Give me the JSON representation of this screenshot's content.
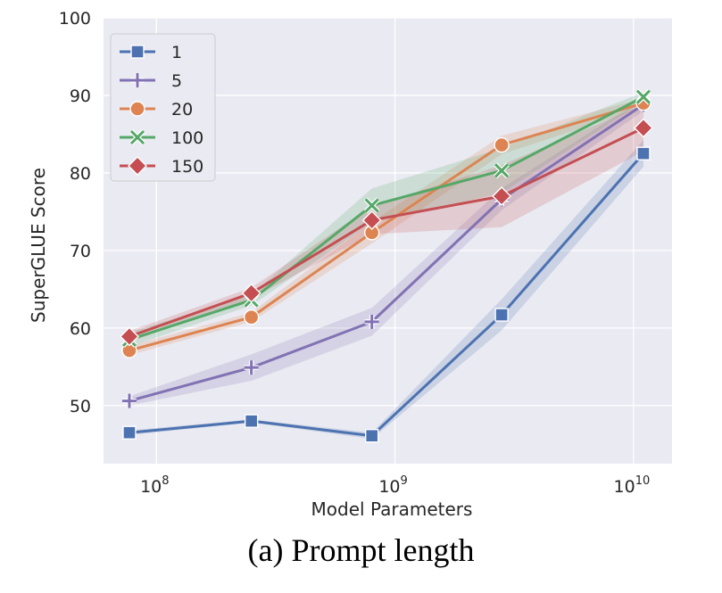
{
  "caption": "(a) Prompt length",
  "chart_data": {
    "type": "line",
    "xlabel": "Model Parameters",
    "ylabel": "SuperGLUE Score",
    "x_scale": "log",
    "xlim": [
      60000000,
      14500000000
    ],
    "ylim": [
      42.5,
      100
    ],
    "x_ticks": [
      {
        "value": 100000000,
        "base": "10",
        "exp": "8"
      },
      {
        "value": 1000000000,
        "base": "10",
        "exp": "9"
      },
      {
        "value": 10000000000,
        "base": "10",
        "exp": "10"
      }
    ],
    "y_ticks": [
      50,
      60,
      70,
      80,
      90,
      100
    ],
    "grid": true,
    "legend_position": "top-left",
    "x": [
      77000000,
      250000000,
      800000000,
      2800000000,
      11000000000
    ],
    "series": [
      {
        "name": "1",
        "color": "#4c72b0",
        "marker": "square",
        "values": [
          46.5,
          48.0,
          46.1,
          61.7,
          82.5
        ],
        "band_low": [
          46.2,
          47.8,
          45.7,
          59.7,
          80.8
        ],
        "band_high": [
          46.8,
          48.2,
          46.5,
          63.7,
          84.2
        ]
      },
      {
        "name": "5",
        "color": "#8172b3",
        "marker": "plus",
        "values": [
          50.6,
          54.9,
          60.8,
          76.6,
          88.8
        ],
        "band_low": [
          50.0,
          53.2,
          59.0,
          75.2,
          88.0
        ],
        "band_high": [
          51.2,
          56.6,
          62.6,
          78.0,
          89.6
        ]
      },
      {
        "name": "20",
        "color": "#dd8452",
        "marker": "circle",
        "values": [
          57.1,
          61.4,
          72.3,
          83.6,
          89.0
        ],
        "band_low": [
          56.5,
          60.8,
          70.9,
          82.4,
          88.4
        ],
        "band_high": [
          57.7,
          62.0,
          73.7,
          84.8,
          89.6
        ]
      },
      {
        "name": "100",
        "color": "#55a868",
        "marker": "x",
        "values": [
          58.5,
          63.6,
          75.8,
          80.3,
          89.8
        ],
        "band_low": [
          57.6,
          62.9,
          73.6,
          77.4,
          89.2
        ],
        "band_high": [
          59.4,
          64.3,
          78.0,
          83.2,
          90.4
        ]
      },
      {
        "name": "150",
        "color": "#c44e52",
        "marker": "diamond",
        "values": [
          58.9,
          64.5,
          73.9,
          77.0,
          85.8
        ],
        "band_low": [
          58.2,
          63.8,
          72.1,
          73.0,
          82.8
        ],
        "band_high": [
          59.6,
          65.2,
          75.7,
          81.0,
          88.8
        ]
      }
    ]
  }
}
